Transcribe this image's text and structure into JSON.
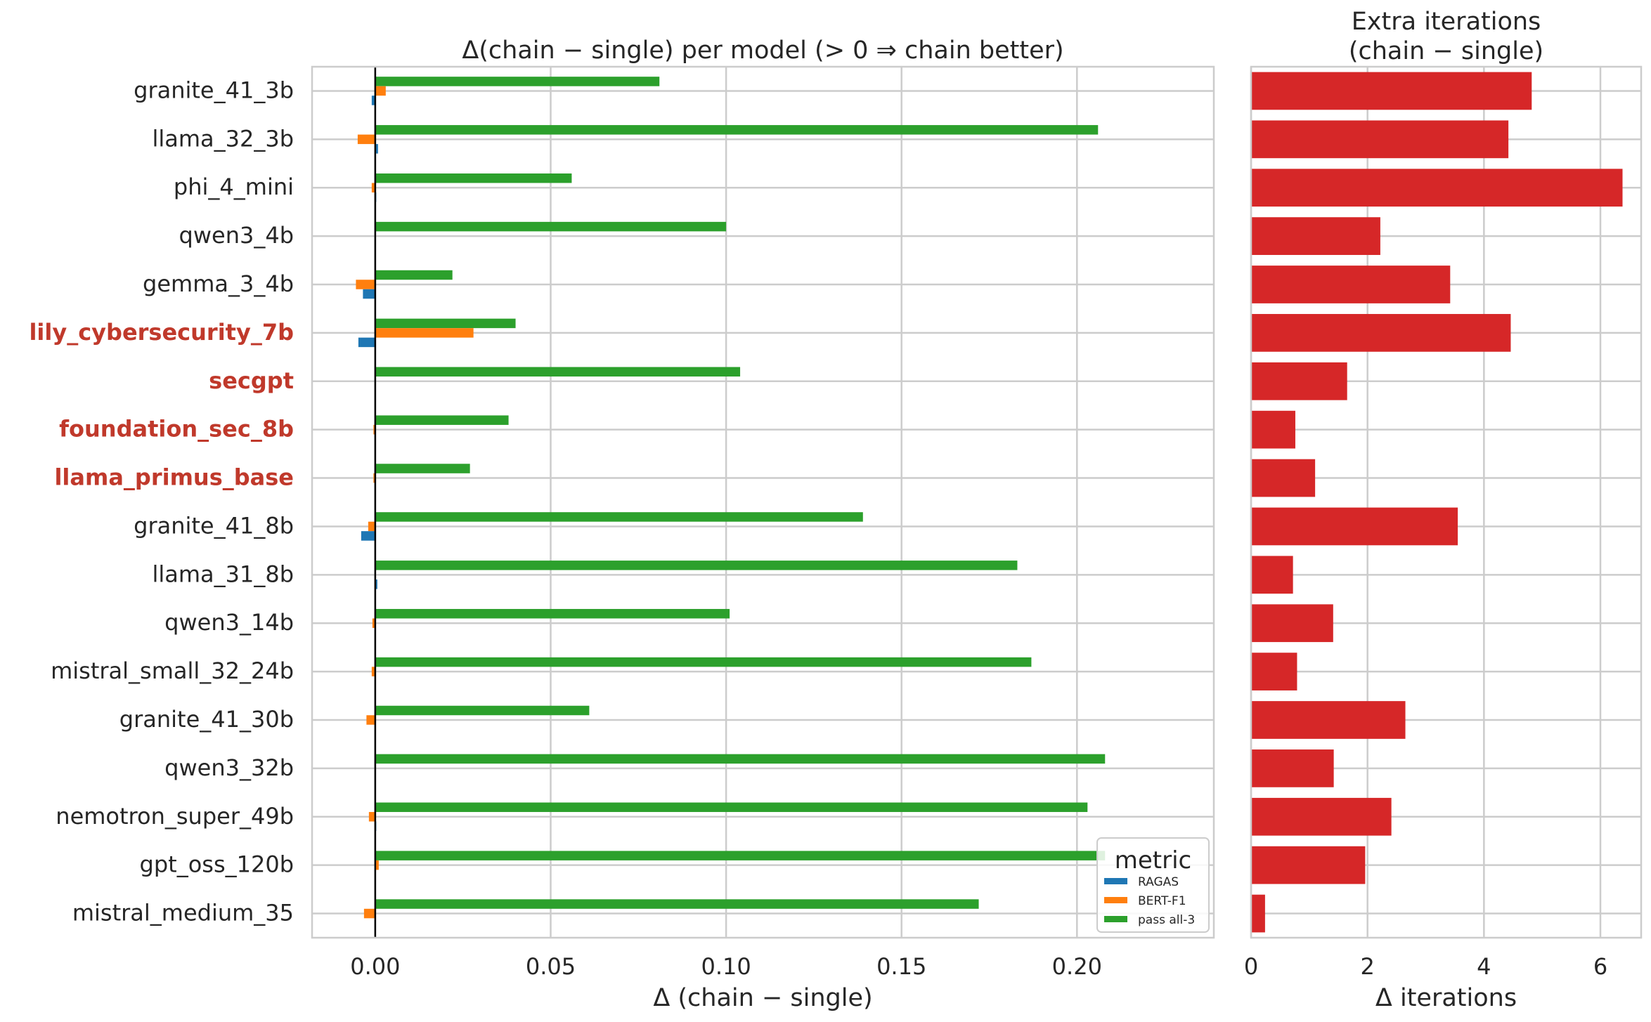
{
  "chart_data": [
    {
      "type": "bar",
      "orientation": "horizontal",
      "title": "Δ(chain − single) per model  (> 0 ⇒ chain better)",
      "xlabel": "Δ (chain − single)",
      "xlim": [
        -0.018,
        0.239
      ],
      "xticks": [
        "0.00",
        "0.05",
        "0.10",
        "0.15",
        "0.20"
      ],
      "xtick_values": [
        0,
        0.05,
        0.1,
        0.15,
        0.2
      ],
      "grid": true,
      "zero_line": true,
      "legend": {
        "title": "metric",
        "placement": "lower-right",
        "entries": [
          "RAGAS",
          "BERT-F1",
          "pass all-3"
        ]
      },
      "highlight_color": "#c0392b",
      "categories": [
        "granite_41_3b",
        "llama_32_3b",
        "phi_4_mini",
        "qwen3_4b",
        "gemma_3_4b",
        "lily_cybersecurity_7b",
        "secgpt",
        "foundation_sec_8b",
        "llama_primus_base",
        "granite_41_8b",
        "llama_31_8b",
        "qwen3_14b",
        "mistral_small_32_24b",
        "granite_41_30b",
        "qwen3_32b",
        "nemotron_super_49b",
        "gpt_oss_120b",
        "mistral_medium_35"
      ],
      "highlighted": [
        "lily_cybersecurity_7b",
        "secgpt",
        "foundation_sec_8b",
        "llama_primus_base"
      ],
      "series": [
        {
          "name": "pass all-3",
          "color": "#2ca02c",
          "values": [
            0.081,
            0.206,
            0.056,
            0.1,
            0.022,
            0.04,
            0.104,
            0.038,
            0.027,
            0.139,
            0.183,
            0.101,
            0.187,
            0.061,
            0.208,
            0.203,
            0.208,
            0.172
          ]
        },
        {
          "name": "BERT-F1",
          "color": "#ff7f0e",
          "values": [
            0.003,
            -0.005,
            -0.001,
            0,
            -0.0055,
            0.028,
            0,
            -0.0005,
            -0.0005,
            -0.002,
            0,
            -0.0008,
            -0.001,
            -0.0025,
            0,
            -0.0018,
            0.001,
            -0.0032
          ]
        },
        {
          "name": "RAGAS",
          "color": "#1f77b4",
          "values": [
            -0.001,
            0.0008,
            0.0003,
            0,
            -0.0035,
            -0.0048,
            0,
            0,
            0,
            -0.004,
            0.0006,
            0,
            0,
            0,
            0,
            0.0003,
            0,
            0
          ]
        }
      ]
    },
    {
      "type": "bar",
      "orientation": "horizontal",
      "title_lines": [
        "Extra iterations",
        "(chain − single)"
      ],
      "xlabel": "Δ iterations",
      "xlim": [
        0,
        6.7
      ],
      "xticks": [
        "0",
        "2",
        "4",
        "6"
      ],
      "xtick_values": [
        0,
        2,
        4,
        6
      ],
      "grid": true,
      "color": "#d62728",
      "values": [
        4.82,
        4.42,
        6.38,
        2.22,
        3.42,
        4.46,
        1.65,
        0.76,
        1.1,
        3.55,
        0.72,
        1.41,
        0.79,
        2.65,
        1.42,
        2.41,
        1.96,
        0.24
      ]
    }
  ]
}
